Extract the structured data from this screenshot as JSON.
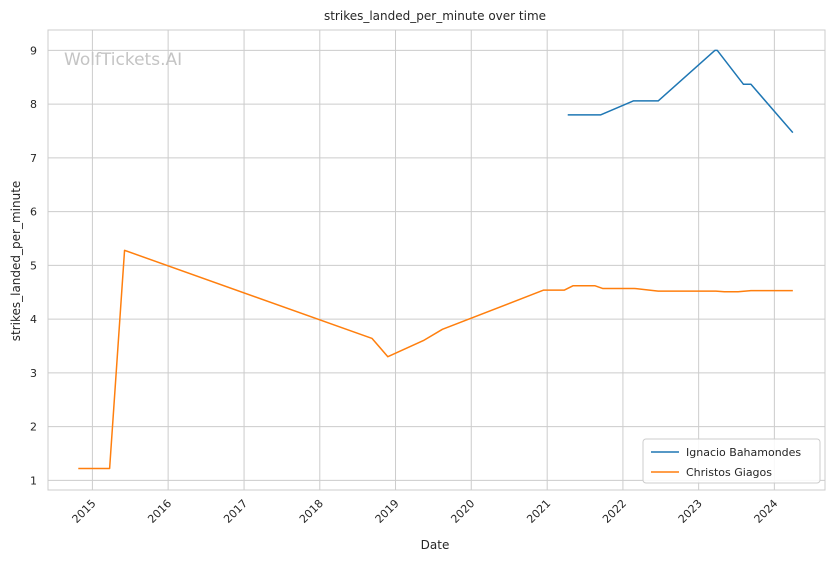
{
  "watermark": "WolfTickets.AI",
  "chart_data": {
    "type": "line",
    "title": "strikes_landed_per_minute over time",
    "xlabel": "Date",
    "ylabel": "strikes_landed_per_minute",
    "x_type": "date",
    "xlim": [
      "2014-06-01",
      "2024-09-01"
    ],
    "ylim": [
      0.82,
      9.38
    ],
    "x_ticks": [
      "2015",
      "2016",
      "2017",
      "2018",
      "2019",
      "2020",
      "2021",
      "2022",
      "2023",
      "2024"
    ],
    "y_ticks": [
      1,
      2,
      3,
      4,
      5,
      6,
      7,
      8,
      9
    ],
    "grid": true,
    "legend_position": "lower-right",
    "series": [
      {
        "name": "Ignacio Bahamondes",
        "color": "#1f77b4",
        "points": [
          [
            "2021-04-10",
            7.8
          ],
          [
            "2021-09-15",
            7.8
          ],
          [
            "2022-02-20",
            8.06
          ],
          [
            "2022-06-20",
            8.06
          ],
          [
            "2023-03-20",
            9.0
          ],
          [
            "2023-04-01",
            9.0
          ],
          [
            "2023-08-05",
            8.37
          ],
          [
            "2023-09-10",
            8.37
          ],
          [
            "2024-03-30",
            7.47
          ]
        ]
      },
      {
        "name": "Christos Giagos",
        "color": "#ff7f0e",
        "points": [
          [
            "2014-10-25",
            1.22
          ],
          [
            "2015-03-25",
            1.22
          ],
          [
            "2015-06-05",
            5.28
          ],
          [
            "2018-09-10",
            3.64
          ],
          [
            "2018-11-25",
            3.3
          ],
          [
            "2019-05-15",
            3.6
          ],
          [
            "2019-08-15",
            3.81
          ],
          [
            "2020-12-15",
            4.54
          ],
          [
            "2021-03-25",
            4.54
          ],
          [
            "2021-05-05",
            4.62
          ],
          [
            "2021-08-20",
            4.62
          ],
          [
            "2021-09-25",
            4.57
          ],
          [
            "2022-02-25",
            4.57
          ],
          [
            "2022-06-20",
            4.52
          ],
          [
            "2023-03-25",
            4.52
          ],
          [
            "2023-05-05",
            4.51
          ],
          [
            "2023-07-10",
            4.51
          ],
          [
            "2023-09-10",
            4.53
          ],
          [
            "2024-03-30",
            4.53
          ]
        ]
      }
    ]
  }
}
